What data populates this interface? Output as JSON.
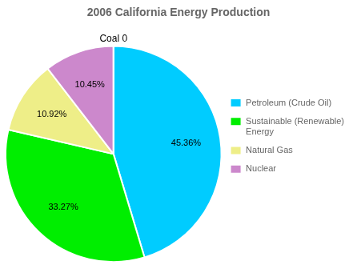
{
  "chart_data": {
    "type": "pie",
    "title": "2006 California Energy Production",
    "categories": [
      "Petroleum (Crude Oil)",
      "Sustainable (Renewable)\nEnergy",
      "Natural Gas",
      "Nuclear",
      null
    ],
    "values": [
      45.36,
      33.27,
      10.92,
      10.45,
      0.001
    ],
    "value_labels": [
      "45.36%",
      "33.27%",
      "10.92%",
      "10.45%",
      null
    ],
    "colors": [
      "#00CCFF",
      "#00EE00",
      "#EEEE88",
      "#CC88CC",
      "#FFFFFF"
    ],
    "data_labels": true,
    "legend": "right",
    "annotations": [
      {
        "text": "Coal 0"
      }
    ]
  }
}
